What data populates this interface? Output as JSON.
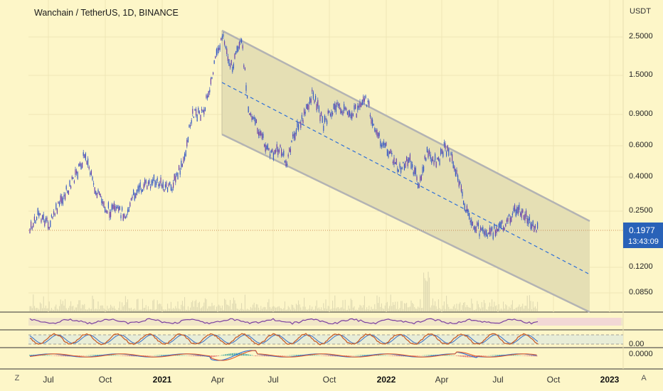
{
  "header": {
    "symbol_title": "Wanchain / TetherUS, 1D, BINANCE",
    "currency": "USDT"
  },
  "price_axis": {
    "labels": [
      "2.5000",
      "1.5000",
      "0.9000",
      "0.6000",
      "0.4000",
      "0.2500",
      "0.1200",
      "0.0850"
    ]
  },
  "current_price": {
    "value": "0.1977",
    "countdown": "13:43:09"
  },
  "oscillator_axis": {
    "stoch_label": "0.00",
    "macd_label": "0.0000"
  },
  "time_axis": {
    "labels": [
      "Jul",
      "Oct",
      "2021",
      "Apr",
      "Jul",
      "Oct",
      "2022",
      "Apr",
      "Jul",
      "Oct",
      "2023"
    ],
    "bold": [
      false,
      false,
      true,
      false,
      false,
      false,
      true,
      false,
      false,
      false,
      true
    ]
  },
  "corner_buttons": {
    "left": "Z",
    "right": "A"
  },
  "colors": {
    "background": "#fdf6c8",
    "channel_fill": "#e5dfb4",
    "channel_line": "#b3b3b3",
    "midline": "#2e6fd8",
    "candle_body": "#3458c4",
    "price_tag": "#2962b8",
    "rsi_line": "#7b3fa0",
    "stoch_k": "#c8602a",
    "stoch_d": "#3a6fc2",
    "macd_line": "#2e6fd8",
    "signal_line": "#e05a2b"
  }
}
